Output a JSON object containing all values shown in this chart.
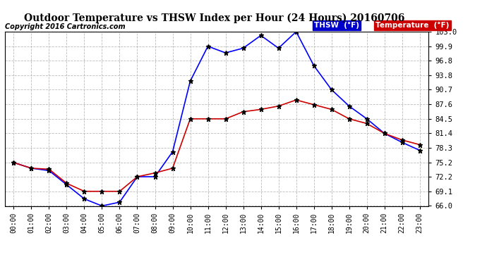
{
  "title": "Outdoor Temperature vs THSW Index per Hour (24 Hours) 20160706",
  "copyright": "Copyright 2016 Cartronics.com",
  "x_labels": [
    "00:00",
    "01:00",
    "02:00",
    "03:00",
    "04:00",
    "05:00",
    "06:00",
    "07:00",
    "08:00",
    "09:00",
    "10:00",
    "11:00",
    "12:00",
    "13:00",
    "14:00",
    "15:00",
    "16:00",
    "17:00",
    "18:00",
    "19:00",
    "20:00",
    "21:00",
    "22:00",
    "23:00"
  ],
  "thsw": [
    75.2,
    74.0,
    73.5,
    70.5,
    67.5,
    66.0,
    66.8,
    72.2,
    72.2,
    77.5,
    92.5,
    99.9,
    98.5,
    99.5,
    102.2,
    99.5,
    103.0,
    95.8,
    90.7,
    87.2,
    84.5,
    81.4,
    79.5,
    77.8
  ],
  "temperature": [
    75.2,
    74.0,
    73.8,
    70.8,
    69.1,
    69.1,
    69.1,
    72.2,
    73.0,
    74.0,
    84.5,
    84.5,
    84.5,
    86.0,
    86.5,
    87.2,
    88.5,
    87.5,
    86.5,
    84.5,
    83.5,
    81.4,
    80.0,
    79.0
  ],
  "thsw_color": "#0000ff",
  "temp_color": "#cc0000",
  "ylim_min": 66.0,
  "ylim_max": 103.0,
  "yticks": [
    66.0,
    69.1,
    72.2,
    75.2,
    78.3,
    81.4,
    84.5,
    87.6,
    90.7,
    93.8,
    96.8,
    99.9,
    103.0
  ],
  "bg_color": "#ffffff",
  "grid_color": "#bbbbbb",
  "legend_thsw_bg": "#0000cc",
  "legend_temp_bg": "#cc0000",
  "legend_thsw_text": "THSW  (°F)",
  "legend_temp_text": "Temperature  (°F)"
}
